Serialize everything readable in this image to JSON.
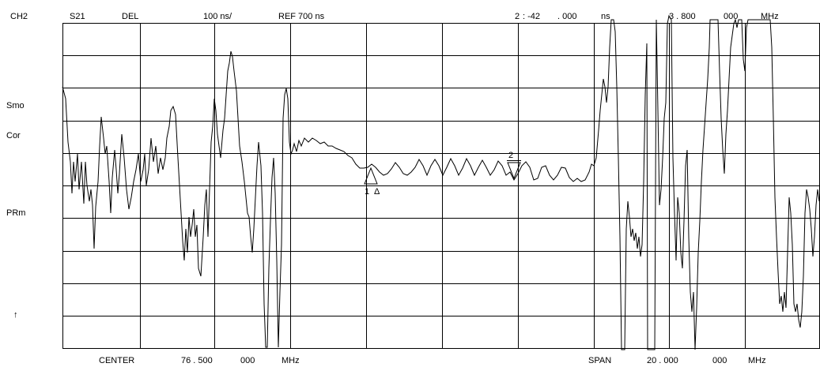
{
  "header": {
    "channel": "CH2",
    "parameter": "S21",
    "format": "DEL",
    "scale": "100 ns/",
    "reference": "REF 700 ns",
    "marker_readout": {
      "id": "2",
      "value_int": ": -42",
      "value_frac": ". 000",
      "value_unit": "ns",
      "freq_int": "3 . 800",
      "freq_frac": "000",
      "freq_unit": "MHz"
    }
  },
  "side_annotations": {
    "smoothing": "Smo",
    "correction": "Cor",
    "port_extension": "PRm",
    "ref_arrow": "↑"
  },
  "footer": {
    "center_label": "CENTER",
    "center_int": "76 . 500",
    "center_frac": "000",
    "center_unit": "MHz",
    "span_label": "SPAN",
    "span_int": "20 . 000",
    "span_frac": "000",
    "span_unit": "MHz"
  },
  "markers": [
    {
      "number": "1",
      "delta": "Δ"
    },
    {
      "number": "2"
    }
  ],
  "colors": {
    "trace": "#000000",
    "grid": "#000000",
    "background": "#ffffff"
  }
}
